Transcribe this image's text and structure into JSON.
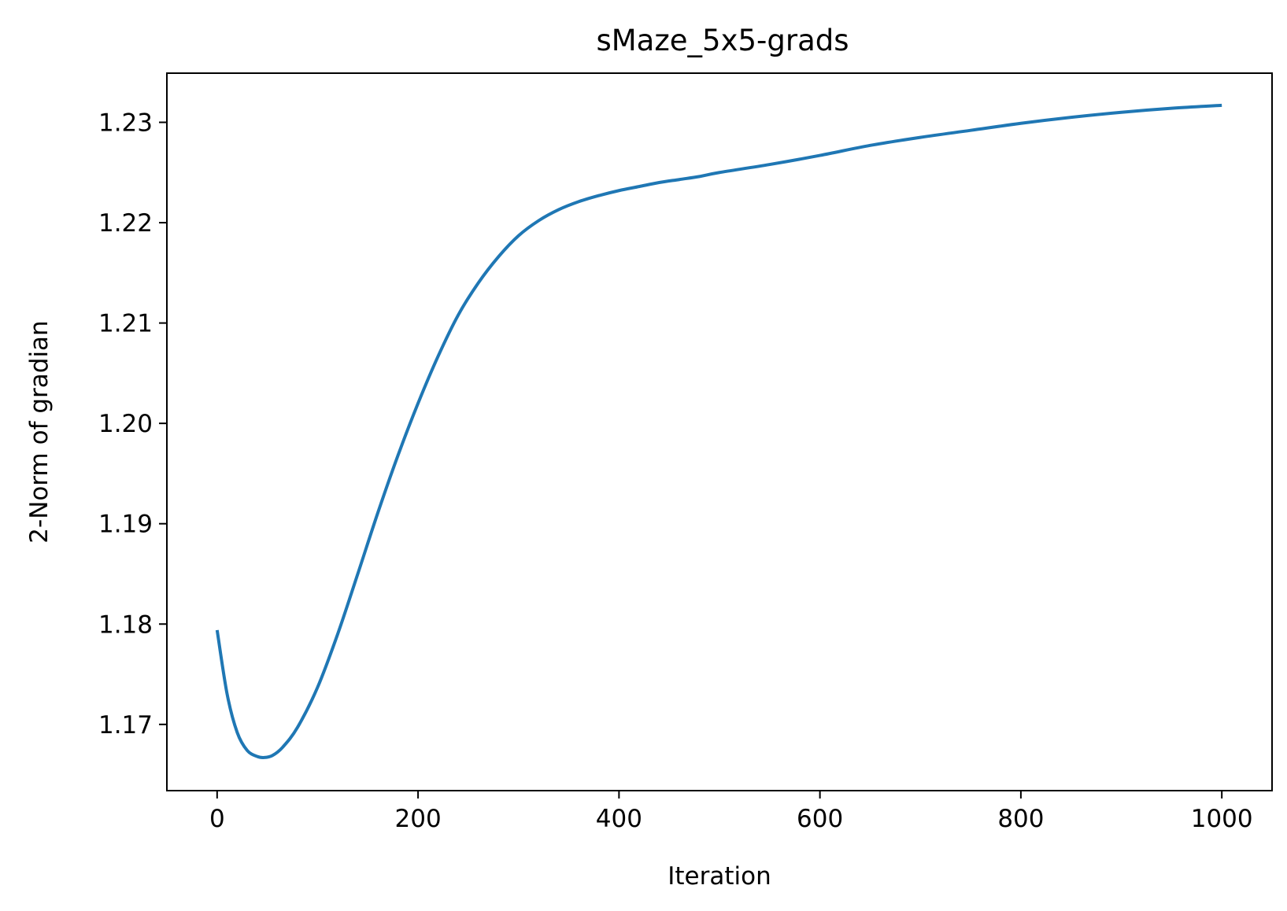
{
  "chart_data": {
    "type": "line",
    "title": "sMaze_5x5-grads",
    "xlabel": "Iteration",
    "ylabel": "2-Norm of gradian",
    "xlim": [
      -50,
      1050
    ],
    "ylim": [
      1.1634,
      1.2349
    ],
    "xticks": [
      0,
      200,
      400,
      600,
      800,
      1000
    ],
    "xtick_labels": [
      "0",
      "200",
      "400",
      "600",
      "800",
      "1000"
    ],
    "yticks": [
      1.17,
      1.18,
      1.19,
      1.2,
      1.21,
      1.22,
      1.23
    ],
    "ytick_labels": [
      "1.17",
      "1.18",
      "1.19",
      "1.20",
      "1.21",
      "1.22",
      "1.23"
    ],
    "grid": false,
    "line_color": "#1f77b4",
    "series": [
      {
        "x": [
          0,
          10,
          20,
          30,
          40,
          47,
          55,
          65,
          80,
          100,
          120,
          140,
          160,
          180,
          200,
          220,
          240,
          260,
          280,
          300,
          320,
          340,
          360,
          380,
          400,
          420,
          440,
          460,
          480,
          500,
          550,
          600,
          650,
          700,
          750,
          800,
          850,
          900,
          950,
          1000
        ],
        "y": [
          1.1794,
          1.173,
          1.1692,
          1.1674,
          1.1668,
          1.1667,
          1.1669,
          1.1677,
          1.1697,
          1.1737,
          1.179,
          1.185,
          1.1911,
          1.1968,
          1.202,
          1.2067,
          1.2108,
          1.214,
          1.2166,
          1.2187,
          1.2202,
          1.2213,
          1.2221,
          1.2227,
          1.2232,
          1.2236,
          1.224,
          1.2243,
          1.2246,
          1.225,
          1.2258,
          1.2267,
          1.2277,
          1.2285,
          1.2292,
          1.2299,
          1.2305,
          1.231,
          1.2314,
          1.2317
        ]
      }
    ]
  }
}
